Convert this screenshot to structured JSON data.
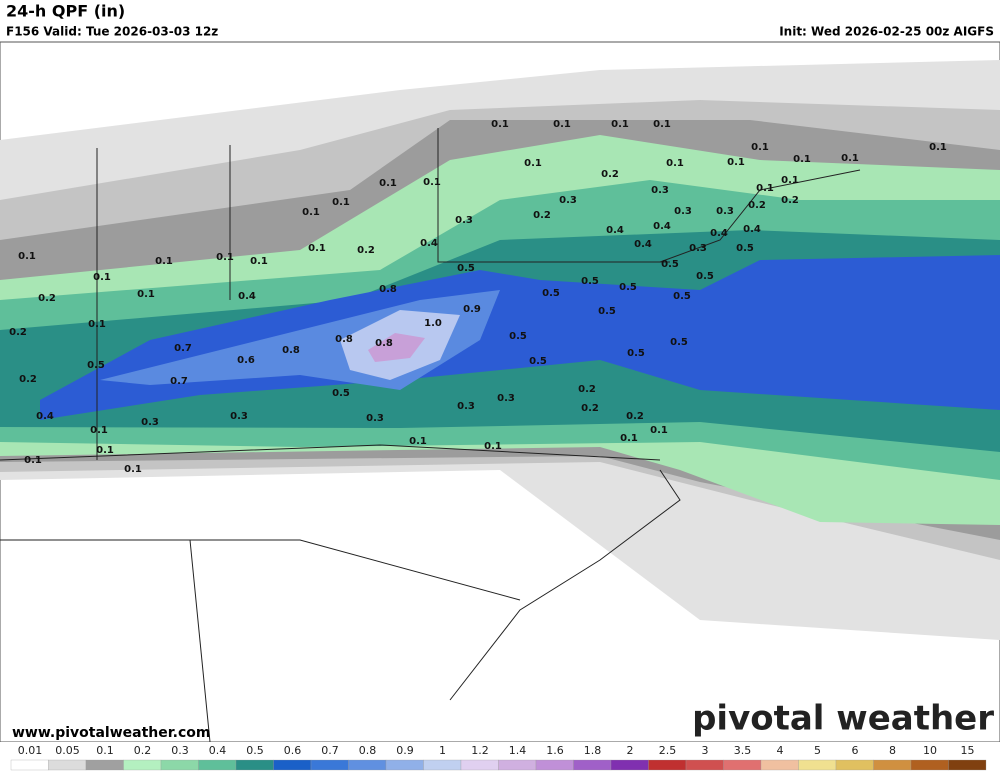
{
  "header": {
    "title": "24-h QPF (in)",
    "valid": "F156 Valid: Tue 2026-03-03 12z",
    "init": "Init: Wed 2026-02-25 00z AIGFS"
  },
  "footer": {
    "website": "www.pivotalweather.com",
    "brand": "pivotal weather"
  },
  "map": {
    "labels": [
      "0.1",
      "0.1",
      "0.1",
      "0.1",
      "0.1",
      "0.1",
      "0.1",
      "0.1",
      "0.1",
      "0.1",
      "0.1",
      "0.1",
      "0.1",
      "0.1",
      "0.1",
      "0.1",
      "0.1",
      "0.2",
      "0.2",
      "0.2",
      "0.3",
      "0.3",
      "0.3",
      "0.3",
      "0.2",
      "0.3",
      "0.4",
      "0.4",
      "0.4",
      "0.4",
      "0.3",
      "0.4",
      "0.4",
      "0.5",
      "0.5",
      "0.5",
      "0.5",
      "0.5",
      "0.5",
      "0.5",
      "0.5",
      "0.5",
      "0.5",
      "0.5",
      "0.5",
      "0.5",
      "0.8",
      "0.9",
      "1.0",
      "0.8",
      "0.8",
      "0.8",
      "0.6",
      "0.7",
      "0.7",
      "0.5",
      "0.5",
      "0.2",
      "0.2",
      "0.2",
      "0.1",
      "0.1",
      "0.1",
      "0.1",
      "0.1",
      "0.1",
      "0.1",
      "0.1",
      "0.2",
      "0.4",
      "0.4",
      "0.3",
      "0.3",
      "0.3",
      "0.3",
      "0.3",
      "0.2",
      "0.2",
      "0.2",
      "0.1",
      "0.1",
      "0.1",
      "0.1",
      "0.1",
      "0.1",
      "0.1",
      "0.1"
    ]
  },
  "colorbar": {
    "labels": [
      "0.01",
      "0.05",
      "0.1",
      "0.2",
      "0.3",
      "0.4",
      "0.5",
      "0.6",
      "0.7",
      "0.8",
      "0.9",
      "1",
      "1.2",
      "1.4",
      "1.6",
      "1.8",
      "2",
      "2.5",
      "3",
      "3.5",
      "4",
      "5",
      "6",
      "8",
      "10",
      "15"
    ],
    "colors": [
      "#ffffff",
      "#dcdcdc",
      "#a0a0a0",
      "#b4f0c0",
      "#8cd8a8",
      "#5fbf9a",
      "#2a8f86",
      "#1a60c8",
      "#3a78d8",
      "#6090e0",
      "#90b0e8",
      "#c0d0f0",
      "#e0d0f0",
      "#d0b0e0",
      "#c090d8",
      "#a060c8",
      "#8030b0",
      "#c03030",
      "#d05050",
      "#e07070",
      "#f0c0a0",
      "#f0e090",
      "#e0c060",
      "#d09040",
      "#b06020",
      "#804010"
    ]
  }
}
